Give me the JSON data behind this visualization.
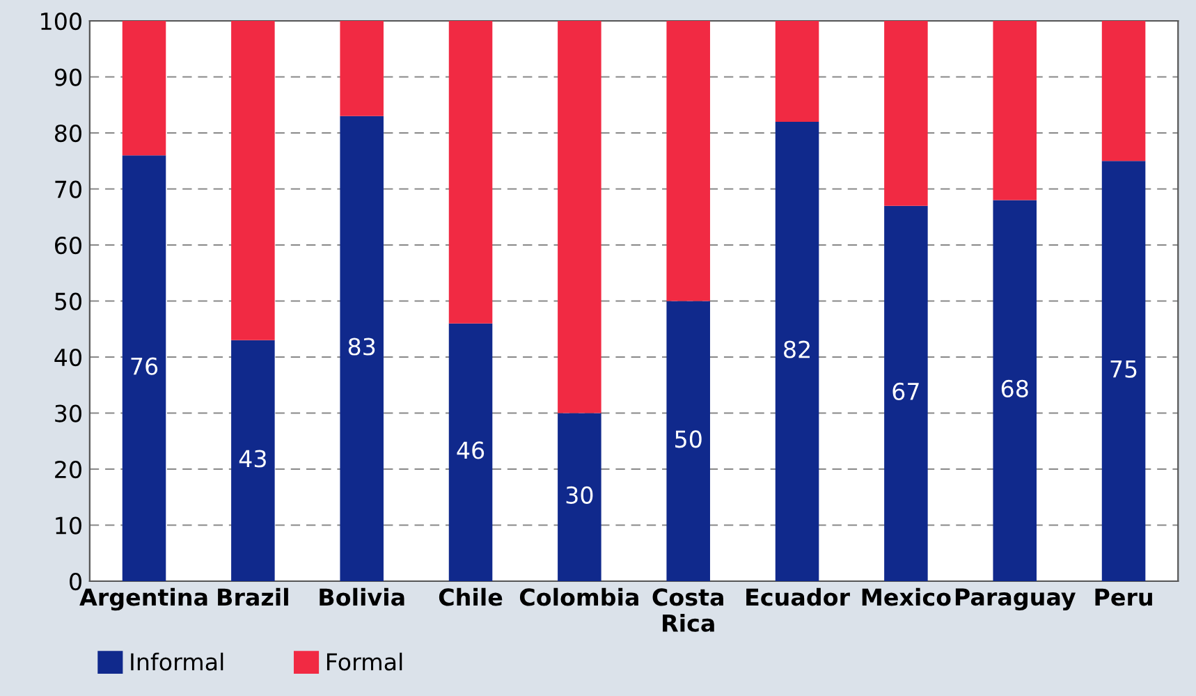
{
  "chart_data": {
    "type": "bar",
    "stacked": true,
    "categories": [
      "Argentina",
      "Brazil",
      "Bolivia",
      "Chile",
      "Colombia",
      "Costa Rica",
      "Ecuador",
      "Mexico",
      "Paraguay",
      "Peru"
    ],
    "series": [
      {
        "name": "Informal",
        "color": "#10298c",
        "values": [
          76,
          43,
          83,
          46,
          30,
          50,
          82,
          67,
          68,
          75
        ],
        "value_labels": [
          "76",
          "43",
          "83",
          "46",
          "30",
          "50",
          "82",
          "67",
          "68",
          "75"
        ]
      },
      {
        "name": "Formal",
        "color": "#f12a43",
        "values": [
          24,
          57,
          17,
          54,
          70,
          50,
          18,
          33,
          32,
          25
        ]
      }
    ],
    "ylim": [
      0,
      100
    ],
    "yticks": [
      0,
      10,
      20,
      30,
      40,
      50,
      60,
      70,
      80,
      90,
      100
    ],
    "grid": "y",
    "legend": "bottom left"
  }
}
